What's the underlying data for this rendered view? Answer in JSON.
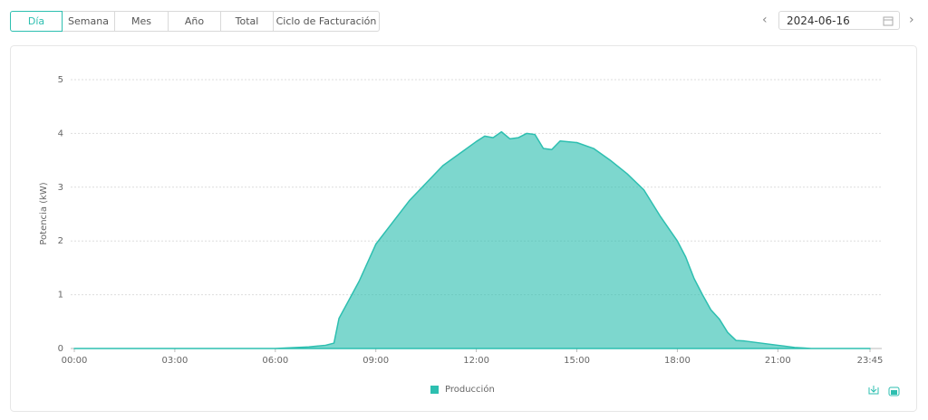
{
  "tabs": [
    "Día",
    "Semana",
    "Mes",
    "Año",
    "Total",
    "Ciclo de Facturación"
  ],
  "date": "2024-06-16",
  "chart_data": {
    "type": "area",
    "y_label": "Potencia  (kW)",
    "x": [
      0,
      6,
      7,
      7.5,
      7.75,
      7.9,
      8.5,
      9,
      10,
      11,
      12,
      12.25,
      12.5,
      12.75,
      13,
      13.25,
      13.5,
      13.75,
      14,
      14.25,
      14.5,
      15,
      15.5,
      16,
      16.5,
      17,
      17.5,
      18,
      18.25,
      18.5,
      18.75,
      19,
      19.25,
      19.5,
      19.75,
      20,
      20.5,
      21,
      21.5,
      22,
      23.75
    ],
    "series": [
      {
        "name": "Producción",
        "color": "#2dbfb0",
        "values": [
          0,
          0,
          0.03,
          0.06,
          0.1,
          0.56,
          1.25,
          1.94,
          2.75,
          3.4,
          3.85,
          3.95,
          3.92,
          4.03,
          3.9,
          3.92,
          4.0,
          3.98,
          3.72,
          3.7,
          3.86,
          3.83,
          3.72,
          3.5,
          3.25,
          2.95,
          2.45,
          2.0,
          1.7,
          1.3,
          1.0,
          0.72,
          0.55,
          0.3,
          0.15,
          0.14,
          0.1,
          0.06,
          0.02,
          0,
          0
        ]
      }
    ],
    "xlim": [
      0,
      23.75
    ],
    "xticks": [
      {
        "value": 0,
        "label": "00:00"
      },
      {
        "value": 3,
        "label": "03:00"
      },
      {
        "value": 6,
        "label": "06:00"
      },
      {
        "value": 9,
        "label": "09:00"
      },
      {
        "value": 12,
        "label": "12:00"
      },
      {
        "value": 15,
        "label": "15:00"
      },
      {
        "value": 18,
        "label": "18:00"
      },
      {
        "value": 21,
        "label": "21:00"
      },
      {
        "value": 23.75,
        "label": "23:45"
      }
    ],
    "ylim": [
      0,
      5
    ],
    "yticks": [
      0,
      1,
      2,
      3,
      4,
      5
    ],
    "grid": true
  }
}
